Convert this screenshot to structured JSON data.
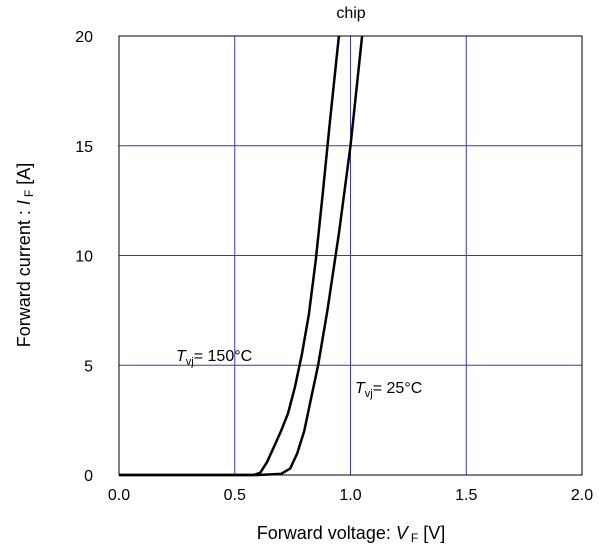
{
  "chart_data": {
    "type": "line",
    "title": "chip",
    "xlabel": {
      "prefix": "Forward voltage: ",
      "symbol": "V",
      "sub": "F",
      "unit": " [V]"
    },
    "ylabel": {
      "prefix": "Forward current : ",
      "symbol": "I",
      "sub": "F",
      "unit": " [A]"
    },
    "xlim": [
      0,
      2
    ],
    "ylim": [
      0,
      20
    ],
    "xticks": [
      "0.0",
      "0.5",
      "1.0",
      "1.5",
      "2.0"
    ],
    "yticks": [
      "0",
      "5",
      "10",
      "15",
      "20"
    ],
    "grid": true,
    "grid_color": "#3a3aa8",
    "line_color": "#000000",
    "series": [
      {
        "label": {
          "symbol": "T",
          "sub": "vj",
          "text": "= 150°C"
        },
        "points": [
          [
            0.0,
            0.0
          ],
          [
            0.58,
            0.0
          ],
          [
            0.61,
            0.1
          ],
          [
            0.64,
            0.6
          ],
          [
            0.67,
            1.3
          ],
          [
            0.7,
            2.0
          ],
          [
            0.73,
            2.8
          ],
          [
            0.76,
            4.0
          ],
          [
            0.79,
            5.5
          ],
          [
            0.82,
            7.3
          ],
          [
            0.85,
            9.8
          ],
          [
            0.88,
            12.8
          ],
          [
            0.91,
            16.0
          ],
          [
            0.95,
            20.0
          ]
        ]
      },
      {
        "label": {
          "symbol": "T",
          "sub": "vj",
          "text": "= 25°C"
        },
        "points": [
          [
            0.0,
            0.0
          ],
          [
            0.6,
            0.0
          ],
          [
            0.7,
            0.05
          ],
          [
            0.74,
            0.3
          ],
          [
            0.77,
            1.0
          ],
          [
            0.8,
            2.0
          ],
          [
            0.83,
            3.5
          ],
          [
            0.86,
            5.0
          ],
          [
            0.9,
            7.5
          ],
          [
            0.95,
            11.0
          ],
          [
            1.0,
            15.0
          ],
          [
            1.05,
            20.0
          ]
        ]
      }
    ]
  }
}
